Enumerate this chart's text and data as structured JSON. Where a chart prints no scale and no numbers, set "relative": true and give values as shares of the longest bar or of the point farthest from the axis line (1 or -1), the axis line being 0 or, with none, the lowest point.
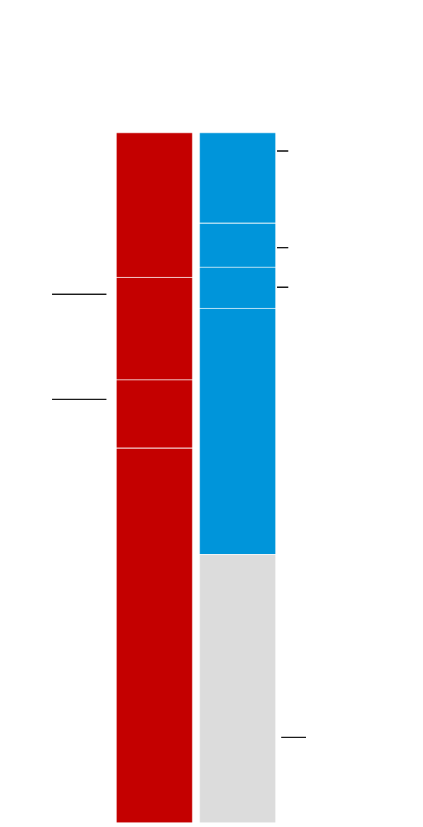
{
  "chart_data": {
    "type": "bar",
    "stacked": true,
    "relative": true,
    "categories": [
      null,
      null
    ],
    "series": [
      {
        "colors": [
          "#c40000",
          "#dcdcdc"
        ],
        "values": [
          0.543,
          0.389
        ]
      },
      {
        "colors": [
          "#c40000",
          "#0095da"
        ],
        "values": [
          0.099,
          0.356
        ]
      },
      {
        "colors": [
          "#c40000",
          "#0095da"
        ],
        "values": [
          0.148,
          0.06
        ]
      },
      {
        "colors": [
          "#c40000",
          "#0095da"
        ],
        "values": [
          0.21,
          0.064
        ]
      },
      {
        "colors": [
          "#c40000",
          "#0095da"
        ],
        "values": [
          null,
          0.131
        ]
      }
    ]
  }
}
